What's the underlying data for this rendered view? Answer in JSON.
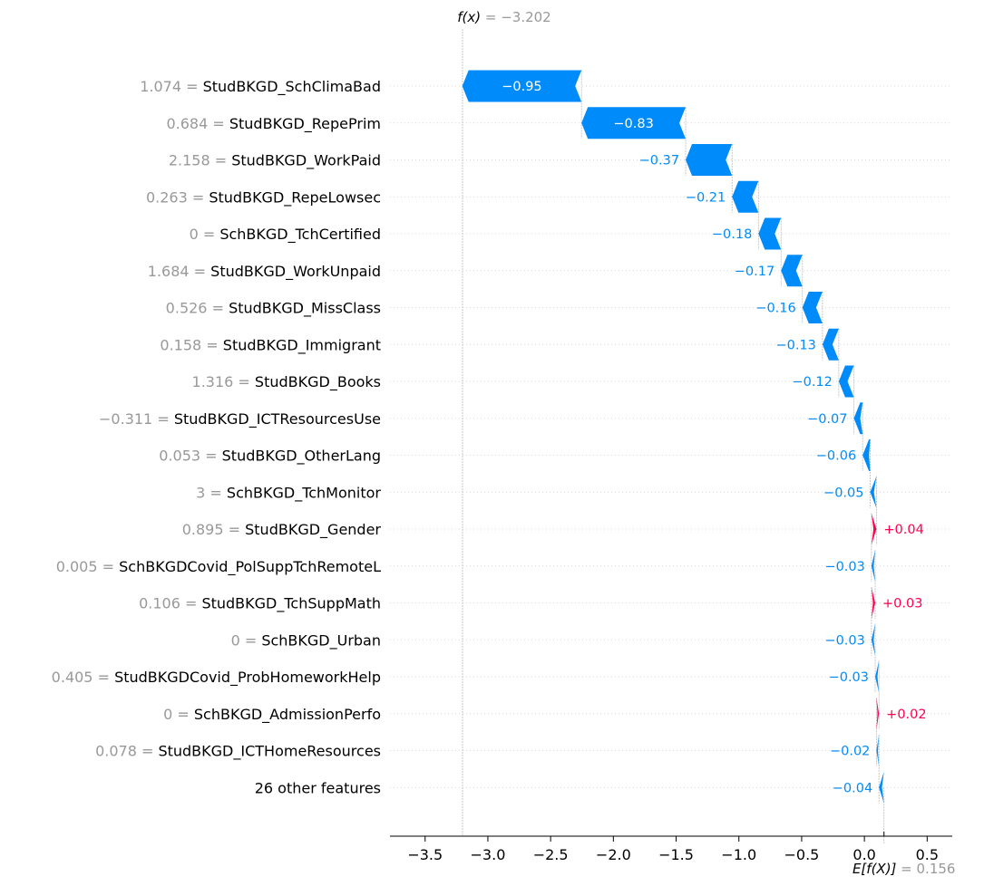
{
  "chart_data": {
    "type": "waterfall",
    "fx_label": "f(x)",
    "fx_value_text": " = −3.202",
    "fx_value": -3.202,
    "base_label": "E[f(X)]",
    "base_value_text": " = 0.156",
    "base_value": 0.156,
    "xlim": [
      -3.78,
      0.7
    ],
    "xticks": [
      -3.5,
      -3.0,
      -2.5,
      -2.0,
      -1.5,
      -1.0,
      -0.5,
      0.0,
      0.5
    ],
    "xtick_labels": [
      "−3.5",
      "−3.0",
      "−2.5",
      "−2.0",
      "−1.5",
      "−1.0",
      "−0.5",
      "0.0",
      "0.5"
    ],
    "features": [
      {
        "value": "1.074",
        "name": "StudBKGD_SchClimaBad",
        "shap": -0.95,
        "label": "−0.95"
      },
      {
        "value": "0.684",
        "name": "StudBKGD_RepePrim",
        "shap": -0.83,
        "label": "−0.83"
      },
      {
        "value": "2.158",
        "name": "StudBKGD_WorkPaid",
        "shap": -0.37,
        "label": "−0.37"
      },
      {
        "value": "0.263",
        "name": "StudBKGD_RepeLowsec",
        "shap": -0.21,
        "label": "−0.21"
      },
      {
        "value": "0",
        "name": "SchBKGD_TchCertified",
        "shap": -0.18,
        "label": "−0.18"
      },
      {
        "value": "1.684",
        "name": "StudBKGD_WorkUnpaid",
        "shap": -0.17,
        "label": "−0.17"
      },
      {
        "value": "0.526",
        "name": "StudBKGD_MissClass",
        "shap": -0.16,
        "label": "−0.16"
      },
      {
        "value": "0.158",
        "name": "StudBKGD_Immigrant",
        "shap": -0.13,
        "label": "−0.13"
      },
      {
        "value": "1.316",
        "name": "StudBKGD_Books",
        "shap": -0.12,
        "label": "−0.12"
      },
      {
        "value": "−0.311",
        "name": "StudBKGD_ICTResourcesUse",
        "shap": -0.07,
        "label": "−0.07"
      },
      {
        "value": "0.053",
        "name": "StudBKGD_OtherLang",
        "shap": -0.06,
        "label": "−0.06"
      },
      {
        "value": "3",
        "name": "SchBKGD_TchMonitor",
        "shap": -0.05,
        "label": "−0.05"
      },
      {
        "value": "0.895",
        "name": "StudBKGD_Gender",
        "shap": 0.04,
        "label": "+0.04"
      },
      {
        "value": "0.005",
        "name": "SchBKGDCovid_PolSuppTchRemoteL",
        "shap": -0.03,
        "label": "−0.03"
      },
      {
        "value": "0.106",
        "name": "StudBKGD_TchSuppMath",
        "shap": 0.03,
        "label": "+0.03"
      },
      {
        "value": "0",
        "name": "SchBKGD_Urban",
        "shap": -0.03,
        "label": "−0.03"
      },
      {
        "value": "0.405",
        "name": "StudBKGDCovid_ProbHomeworkHelp",
        "shap": -0.03,
        "label": "−0.03"
      },
      {
        "value": "0",
        "name": "SchBKGD_AdmissionPerfo",
        "shap": 0.02,
        "label": "+0.02"
      },
      {
        "value": "0.078",
        "name": "StudBKGD_ICTHomeResources",
        "shap": -0.02,
        "label": "−0.02"
      },
      {
        "value": "",
        "name": "26 other features",
        "shap": -0.04,
        "label": "−0.04"
      }
    ],
    "colors": {
      "negative": "#008bfb",
      "positive": "#ff0051",
      "muted_text": "#999999",
      "text": "#000000",
      "grid": "#cccccc"
    }
  }
}
